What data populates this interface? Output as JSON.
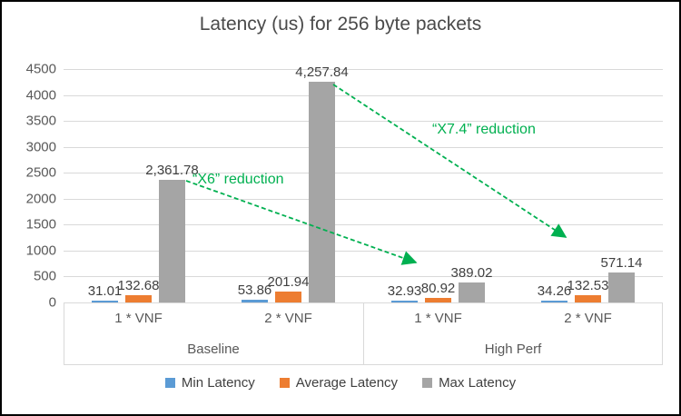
{
  "title": "Latency (us) for 256 byte packets",
  "chart_data": {
    "type": "bar",
    "title": "Latency (us) for 256 byte packets",
    "categories": [
      "1 * VNF",
      "2 * VNF",
      "1 * VNF",
      "2 * VNF"
    ],
    "category_groups": [
      {
        "label": "Baseline",
        "span": 2
      },
      {
        "label": "High Perf",
        "span": 2
      }
    ],
    "series": [
      {
        "name": "Min Latency",
        "color": "#5B9BD5",
        "values": [
          31.01,
          53.86,
          32.93,
          34.26
        ],
        "labels": [
          "31.01",
          "53.86",
          "32.93",
          "34.26"
        ]
      },
      {
        "name": "Average Latency",
        "color": "#ED7D31",
        "values": [
          132.68,
          201.94,
          80.92,
          132.53
        ],
        "labels": [
          "132.68",
          "201.94",
          "80.92",
          "132.53"
        ]
      },
      {
        "name": "Max Latency",
        "color": "#A5A5A5",
        "values": [
          2361.78,
          4257.84,
          389.02,
          571.14
        ],
        "labels": [
          "2,361.78",
          "4,257.84",
          "389.02",
          "571.14"
        ]
      }
    ],
    "ylim": [
      0,
      4500
    ],
    "ytick_step": 500,
    "grid": true,
    "legend_position": "bottom",
    "annotations": [
      "“X6” reduction",
      "“X7.4” reduction"
    ],
    "annotation_color": "#00B050"
  },
  "colors": {
    "gridline": "#D9D9D9",
    "axis_text": "#595959",
    "label_text": "#404040",
    "annotation_green": "#00B050"
  }
}
